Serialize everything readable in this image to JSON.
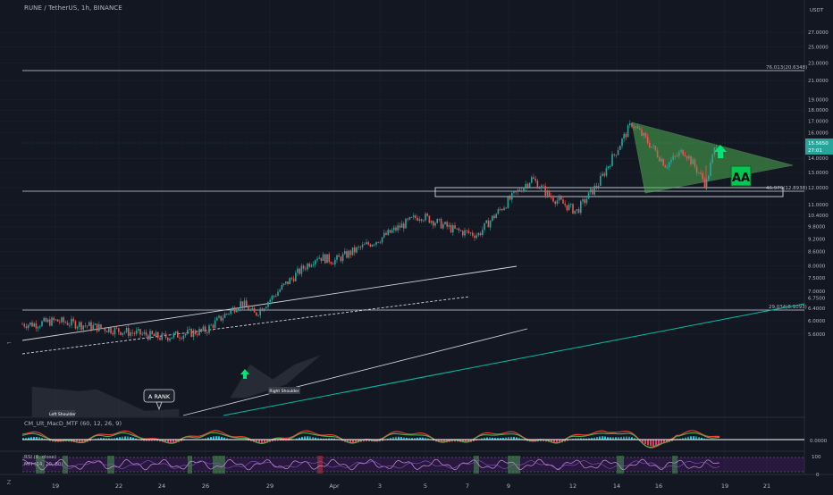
{
  "symbol_title": "RUNE / TetherUS, 1h, BINANCE",
  "quote_currency": "USDT",
  "price_scale": [
    "27.0000",
    "25.0000",
    "23.0000",
    "21.0000",
    "19.0000",
    "18.0000",
    "17.0000",
    "16.0000",
    "14.0000",
    "13.0000",
    "12.0000",
    "11.0000",
    "10.4000",
    "9.8000",
    "9.2000",
    "8.6000",
    "8.0000",
    "7.5000",
    "7.0000",
    "6.7500",
    "6.4000",
    "6.0000",
    "5.6000"
  ],
  "time_axis": [
    "19",
    "22",
    "24",
    "26",
    "29",
    "Apr",
    "3",
    "5",
    "7",
    "9",
    "12",
    "14",
    "16",
    "19",
    "21"
  ],
  "current_price": {
    "value": "15.5650",
    "countdown": "27:01",
    "color": "#26a69a"
  },
  "fib_levels": [
    {
      "label": "76.013(20.6348)",
      "price": 20.6348
    },
    {
      "label": "46.979(12.8938)",
      "price": 12.8938
    },
    {
      "label": "29.034(8.1093)",
      "price": 8.1093
    }
  ],
  "annotations": {
    "a_rank": "A RANK",
    "left_shoulder": "Left Shoulder",
    "right_shoulder": "Right Shoulder",
    "badge": "AA"
  },
  "macd_panel": {
    "title": "CM_Ult_MacD_MTF (60, 12, 26, 9)",
    "zero_label": "0.0000"
  },
  "rsi_panel": {
    "title_rsi": "RSI (6, close)",
    "title_mfi": "MFI (14, 20, 80)",
    "scale": [
      "100",
      "0"
    ]
  },
  "colors": {
    "background": "#131722",
    "bull_candle": "#26a69a",
    "bear_candle": "#ef5350",
    "triangle_fill": "#4caf50",
    "arrow_green": "#00e676",
    "fib_teal": "#00bfa5"
  },
  "chart_data": {
    "type": "candlestick",
    "pair": "RUNE / TetherUS",
    "interval": "1h",
    "exchange": "BINANCE",
    "last_price": 15.565,
    "price_path": [
      {
        "date": "Mar 18",
        "price": 5.9
      },
      {
        "date": "Mar 19",
        "price": 6.0
      },
      {
        "date": "Mar 22",
        "price": 5.7
      },
      {
        "date": "Mar 24",
        "price": 5.5
      },
      {
        "date": "Mar 26",
        "price": 5.7
      },
      {
        "date": "Mar 27",
        "price": 6.6
      },
      {
        "date": "Mar 28",
        "price": 6.2
      },
      {
        "date": "Mar 29",
        "price": 6.7
      },
      {
        "date": "Mar 31",
        "price": 8.4
      },
      {
        "date": "Apr 1",
        "price": 8.2
      },
      {
        "date": "Apr 3",
        "price": 9.2
      },
      {
        "date": "Apr 4",
        "price": 10.4
      },
      {
        "date": "Apr 6",
        "price": 9.6
      },
      {
        "date": "Apr 8",
        "price": 9.4
      },
      {
        "date": "Apr 9",
        "price": 12.6
      },
      {
        "date": "Apr 10",
        "price": 11.5
      },
      {
        "date": "Apr 12",
        "price": 10.6
      },
      {
        "date": "Apr 13",
        "price": 12.3
      },
      {
        "date": "Apr 14",
        "price": 14.6
      },
      {
        "date": "Apr 15",
        "price": 16.8
      },
      {
        "date": "Apr 16",
        "price": 13.5
      },
      {
        "date": "Apr 17",
        "price": 14.6
      },
      {
        "date": "Apr 18",
        "price": 12.2
      },
      {
        "date": "Apr 18",
        "price": 15.565
      }
    ]
  }
}
